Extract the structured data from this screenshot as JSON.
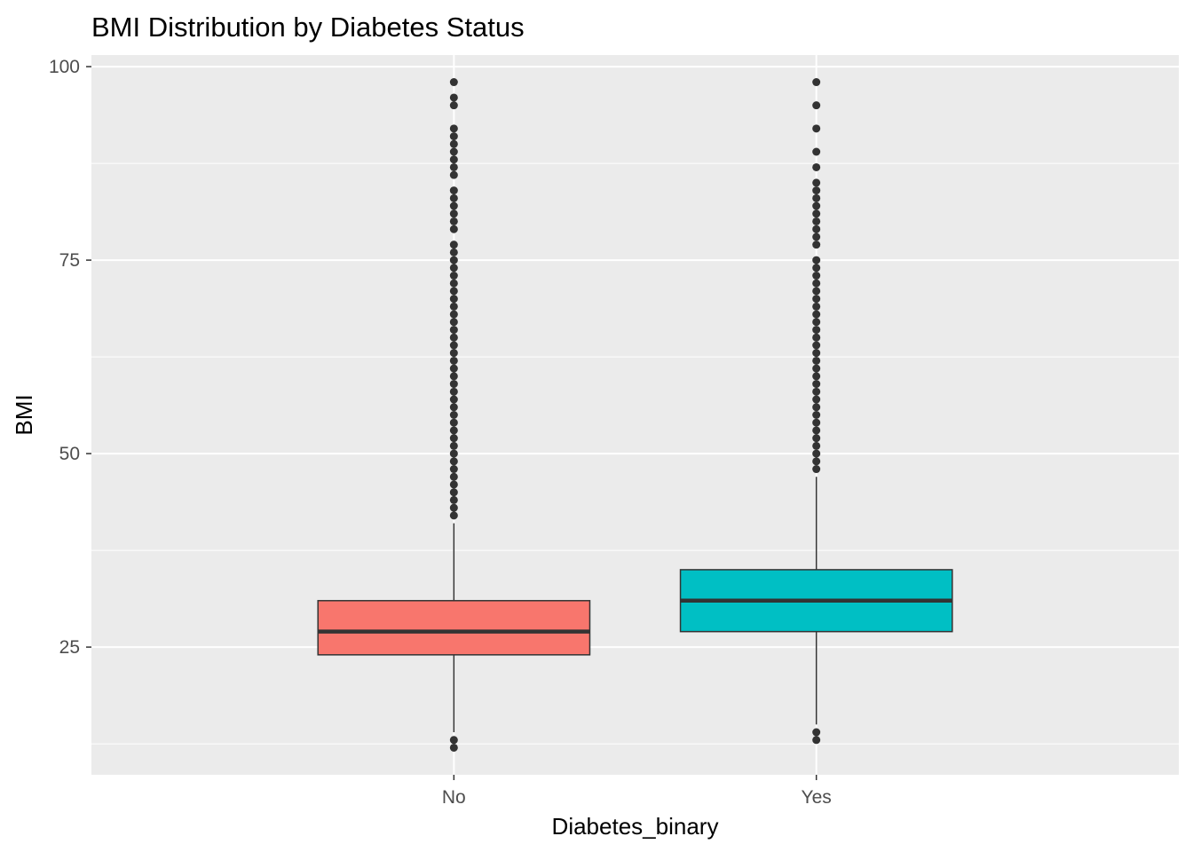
{
  "chart_data": {
    "type": "box",
    "title": "BMI Distribution by Diabetes Status",
    "xlabel": "Diabetes_binary",
    "ylabel": "BMI",
    "ylim": [
      8.5,
      101.5
    ],
    "yticks": [
      25,
      50,
      75,
      100
    ],
    "ytick_labels": [
      "25",
      "50",
      "75",
      "100"
    ],
    "y_minor_ticks": [
      12.5,
      37.5,
      62.5,
      87.5
    ],
    "categories": [
      "No",
      "Yes"
    ],
    "grid": true,
    "legend": "none",
    "boxes": [
      {
        "category": "No",
        "fill": "#F8766D",
        "whisker_low": 14,
        "q1": 24,
        "median": 27,
        "q3": 31,
        "whisker_high": 41,
        "outliers": [
          12,
          13,
          42,
          43,
          44,
          45,
          46,
          47,
          48,
          49,
          50,
          51,
          52,
          53,
          54,
          55,
          56,
          57,
          58,
          59,
          60,
          61,
          62,
          63,
          64,
          65,
          66,
          67,
          68,
          69,
          70,
          71,
          72,
          73,
          74,
          75,
          76,
          77,
          79,
          80,
          81,
          82,
          83,
          84,
          86,
          87,
          88,
          89,
          90,
          91,
          92,
          95,
          96,
          98
        ]
      },
      {
        "category": "Yes",
        "fill": "#00BFC4",
        "whisker_low": 15,
        "q1": 27,
        "median": 31,
        "q3": 35,
        "whisker_high": 47,
        "outliers": [
          13,
          14,
          48,
          49,
          50,
          51,
          52,
          53,
          54,
          55,
          56,
          57,
          58,
          59,
          60,
          61,
          62,
          63,
          64,
          65,
          66,
          67,
          68,
          69,
          70,
          71,
          72,
          73,
          74,
          75,
          77,
          78,
          79,
          80,
          81,
          82,
          83,
          84,
          85,
          87,
          89,
          92,
          95,
          98
        ]
      }
    ]
  }
}
